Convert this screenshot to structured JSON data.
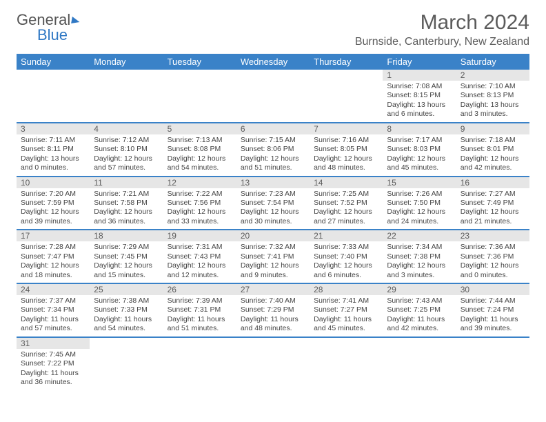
{
  "logo": {
    "part1": "General",
    "part2": "Blue"
  },
  "title": "March 2024",
  "location": "Burnside, Canterbury, New Zealand",
  "colors": {
    "header_bg": "#3a82c8",
    "header_text": "#ffffff",
    "daynum_bg": "#e6e6e6",
    "text": "#5b5b5b",
    "row_border": "#3a82c8",
    "background": "#ffffff"
  },
  "weekdays": [
    "Sunday",
    "Monday",
    "Tuesday",
    "Wednesday",
    "Thursday",
    "Friday",
    "Saturday"
  ],
  "weeks": [
    [
      null,
      null,
      null,
      null,
      null,
      {
        "n": "1",
        "sunrise": "Sunrise: 7:08 AM",
        "sunset": "Sunset: 8:15 PM",
        "daylight": "Daylight: 13 hours and 6 minutes."
      },
      {
        "n": "2",
        "sunrise": "Sunrise: 7:10 AM",
        "sunset": "Sunset: 8:13 PM",
        "daylight": "Daylight: 13 hours and 3 minutes."
      }
    ],
    [
      {
        "n": "3",
        "sunrise": "Sunrise: 7:11 AM",
        "sunset": "Sunset: 8:11 PM",
        "daylight": "Daylight: 13 hours and 0 minutes."
      },
      {
        "n": "4",
        "sunrise": "Sunrise: 7:12 AM",
        "sunset": "Sunset: 8:10 PM",
        "daylight": "Daylight: 12 hours and 57 minutes."
      },
      {
        "n": "5",
        "sunrise": "Sunrise: 7:13 AM",
        "sunset": "Sunset: 8:08 PM",
        "daylight": "Daylight: 12 hours and 54 minutes."
      },
      {
        "n": "6",
        "sunrise": "Sunrise: 7:15 AM",
        "sunset": "Sunset: 8:06 PM",
        "daylight": "Daylight: 12 hours and 51 minutes."
      },
      {
        "n": "7",
        "sunrise": "Sunrise: 7:16 AM",
        "sunset": "Sunset: 8:05 PM",
        "daylight": "Daylight: 12 hours and 48 minutes."
      },
      {
        "n": "8",
        "sunrise": "Sunrise: 7:17 AM",
        "sunset": "Sunset: 8:03 PM",
        "daylight": "Daylight: 12 hours and 45 minutes."
      },
      {
        "n": "9",
        "sunrise": "Sunrise: 7:18 AM",
        "sunset": "Sunset: 8:01 PM",
        "daylight": "Daylight: 12 hours and 42 minutes."
      }
    ],
    [
      {
        "n": "10",
        "sunrise": "Sunrise: 7:20 AM",
        "sunset": "Sunset: 7:59 PM",
        "daylight": "Daylight: 12 hours and 39 minutes."
      },
      {
        "n": "11",
        "sunrise": "Sunrise: 7:21 AM",
        "sunset": "Sunset: 7:58 PM",
        "daylight": "Daylight: 12 hours and 36 minutes."
      },
      {
        "n": "12",
        "sunrise": "Sunrise: 7:22 AM",
        "sunset": "Sunset: 7:56 PM",
        "daylight": "Daylight: 12 hours and 33 minutes."
      },
      {
        "n": "13",
        "sunrise": "Sunrise: 7:23 AM",
        "sunset": "Sunset: 7:54 PM",
        "daylight": "Daylight: 12 hours and 30 minutes."
      },
      {
        "n": "14",
        "sunrise": "Sunrise: 7:25 AM",
        "sunset": "Sunset: 7:52 PM",
        "daylight": "Daylight: 12 hours and 27 minutes."
      },
      {
        "n": "15",
        "sunrise": "Sunrise: 7:26 AM",
        "sunset": "Sunset: 7:50 PM",
        "daylight": "Daylight: 12 hours and 24 minutes."
      },
      {
        "n": "16",
        "sunrise": "Sunrise: 7:27 AM",
        "sunset": "Sunset: 7:49 PM",
        "daylight": "Daylight: 12 hours and 21 minutes."
      }
    ],
    [
      {
        "n": "17",
        "sunrise": "Sunrise: 7:28 AM",
        "sunset": "Sunset: 7:47 PM",
        "daylight": "Daylight: 12 hours and 18 minutes."
      },
      {
        "n": "18",
        "sunrise": "Sunrise: 7:29 AM",
        "sunset": "Sunset: 7:45 PM",
        "daylight": "Daylight: 12 hours and 15 minutes."
      },
      {
        "n": "19",
        "sunrise": "Sunrise: 7:31 AM",
        "sunset": "Sunset: 7:43 PM",
        "daylight": "Daylight: 12 hours and 12 minutes."
      },
      {
        "n": "20",
        "sunrise": "Sunrise: 7:32 AM",
        "sunset": "Sunset: 7:41 PM",
        "daylight": "Daylight: 12 hours and 9 minutes."
      },
      {
        "n": "21",
        "sunrise": "Sunrise: 7:33 AM",
        "sunset": "Sunset: 7:40 PM",
        "daylight": "Daylight: 12 hours and 6 minutes."
      },
      {
        "n": "22",
        "sunrise": "Sunrise: 7:34 AM",
        "sunset": "Sunset: 7:38 PM",
        "daylight": "Daylight: 12 hours and 3 minutes."
      },
      {
        "n": "23",
        "sunrise": "Sunrise: 7:36 AM",
        "sunset": "Sunset: 7:36 PM",
        "daylight": "Daylight: 12 hours and 0 minutes."
      }
    ],
    [
      {
        "n": "24",
        "sunrise": "Sunrise: 7:37 AM",
        "sunset": "Sunset: 7:34 PM",
        "daylight": "Daylight: 11 hours and 57 minutes."
      },
      {
        "n": "25",
        "sunrise": "Sunrise: 7:38 AM",
        "sunset": "Sunset: 7:33 PM",
        "daylight": "Daylight: 11 hours and 54 minutes."
      },
      {
        "n": "26",
        "sunrise": "Sunrise: 7:39 AM",
        "sunset": "Sunset: 7:31 PM",
        "daylight": "Daylight: 11 hours and 51 minutes."
      },
      {
        "n": "27",
        "sunrise": "Sunrise: 7:40 AM",
        "sunset": "Sunset: 7:29 PM",
        "daylight": "Daylight: 11 hours and 48 minutes."
      },
      {
        "n": "28",
        "sunrise": "Sunrise: 7:41 AM",
        "sunset": "Sunset: 7:27 PM",
        "daylight": "Daylight: 11 hours and 45 minutes."
      },
      {
        "n": "29",
        "sunrise": "Sunrise: 7:43 AM",
        "sunset": "Sunset: 7:25 PM",
        "daylight": "Daylight: 11 hours and 42 minutes."
      },
      {
        "n": "30",
        "sunrise": "Sunrise: 7:44 AM",
        "sunset": "Sunset: 7:24 PM",
        "daylight": "Daylight: 11 hours and 39 minutes."
      }
    ],
    [
      {
        "n": "31",
        "sunrise": "Sunrise: 7:45 AM",
        "sunset": "Sunset: 7:22 PM",
        "daylight": "Daylight: 11 hours and 36 minutes."
      },
      null,
      null,
      null,
      null,
      null,
      null
    ]
  ]
}
